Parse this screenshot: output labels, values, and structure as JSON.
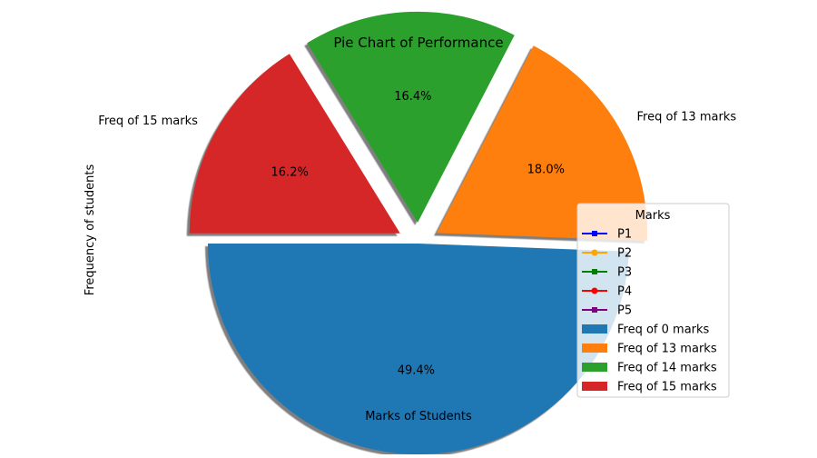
{
  "chart_data": {
    "type": "pie",
    "title": "Pie Chart of Performance",
    "xlabel": "Marks of Students",
    "ylabel": "Frequency of students",
    "start_angle_deg": 180,
    "shadow": true,
    "slices": [
      {
        "label": "Freq of 0 marks",
        "value": 49.4,
        "pct_label": "49.4%",
        "color": "#1f77b4",
        "explode": 0.0,
        "show_label": false
      },
      {
        "label": "Freq of 13 marks",
        "value": 18.0,
        "pct_label": "18.0%",
        "color": "#ff7f0e",
        "explode": 0.1,
        "show_label": true
      },
      {
        "label": "Freq of 14 marks",
        "value": 16.4,
        "pct_label": "16.4%",
        "color": "#2ca02c",
        "explode": 0.1,
        "show_label": false
      },
      {
        "label": "Freq of 15 marks",
        "value": 16.2,
        "pct_label": "16.2%",
        "color": "#d62728",
        "explode": 0.1,
        "show_label": true
      }
    ],
    "legend": {
      "title": "Marks",
      "placement": "center-right",
      "line_entries": [
        {
          "label": "P1",
          "color": "#0000ff",
          "marker": "square"
        },
        {
          "label": "P2",
          "color": "#ffa500",
          "marker": "circle"
        },
        {
          "label": "P3",
          "color": "#008000",
          "marker": "square"
        },
        {
          "label": "P4",
          "color": "#ff0000",
          "marker": "circle"
        },
        {
          "label": "P5",
          "color": "#800080",
          "marker": "square"
        }
      ]
    }
  }
}
